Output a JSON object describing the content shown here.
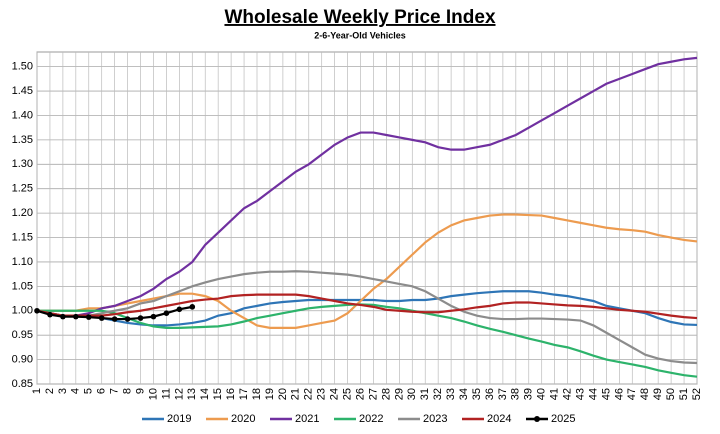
{
  "chart_data": {
    "type": "line",
    "title": "Wholesale Weekly Price Index",
    "subtitle": "2-6-Year-Old Vehicles",
    "x": [
      1,
      2,
      3,
      4,
      5,
      6,
      7,
      8,
      9,
      10,
      11,
      12,
      13,
      14,
      15,
      16,
      17,
      18,
      19,
      20,
      21,
      22,
      23,
      24,
      25,
      26,
      27,
      28,
      29,
      30,
      31,
      32,
      33,
      34,
      35,
      36,
      37,
      38,
      39,
      40,
      41,
      42,
      43,
      44,
      45,
      46,
      47,
      48,
      49,
      50,
      51,
      52
    ],
    "xlim": [
      1,
      52
    ],
    "xticks": [
      1,
      2,
      3,
      4,
      5,
      6,
      7,
      8,
      9,
      10,
      11,
      12,
      13,
      14,
      15,
      16,
      17,
      18,
      19,
      20,
      21,
      22,
      23,
      24,
      25,
      26,
      27,
      28,
      29,
      30,
      31,
      32,
      33,
      34,
      35,
      36,
      37,
      38,
      39,
      40,
      41,
      42,
      43,
      44,
      45,
      46,
      47,
      48,
      49,
      50,
      51,
      52
    ],
    "ylim": [
      0.85,
      1.53
    ],
    "yticks": [
      0.85,
      {
        "value": 0.9,
        "label": "0.90"
      },
      0.95,
      {
        "value": 1,
        "label": "1.00"
      },
      1.05,
      {
        "value": 1.1,
        "label": "1.10"
      },
      1.15,
      {
        "value": 1.2,
        "label": "1.20"
      },
      1.25,
      {
        "value": 1.3,
        "label": "1.30"
      },
      1.35,
      {
        "value": 1.4,
        "label": "1.40"
      },
      1.45,
      {
        "value": 1.5,
        "label": "1.50"
      }
    ],
    "grid": true,
    "legend": "bottom",
    "series": [
      {
        "name": "2019",
        "color": "#2e75b6",
        "values": [
          1.0,
          0.995,
          0.99,
          0.99,
          0.99,
          0.985,
          0.98,
          0.975,
          0.972,
          0.97,
          0.97,
          0.972,
          0.975,
          0.98,
          0.99,
          0.995,
          1.005,
          1.01,
          1.015,
          1.018,
          1.02,
          1.022,
          1.022,
          1.022,
          1.022,
          1.022,
          1.022,
          1.02,
          1.02,
          1.022,
          1.022,
          1.025,
          1.03,
          1.033,
          1.036,
          1.038,
          1.04,
          1.04,
          1.04,
          1.037,
          1.033,
          1.03,
          1.025,
          1.02,
          1.01,
          1.005,
          1.0,
          0.995,
          0.985,
          0.977,
          0.972,
          0.971
        ]
      },
      {
        "name": "2020",
        "color": "#ed9b4f",
        "values": [
          1.0,
          1.0,
          1.0,
          1.0,
          1.005,
          1.005,
          1.01,
          1.015,
          1.02,
          1.025,
          1.03,
          1.035,
          1.035,
          1.03,
          1.02,
          1.0,
          0.985,
          0.97,
          0.965,
          0.965,
          0.965,
          0.97,
          0.975,
          0.98,
          0.995,
          1.02,
          1.045,
          1.065,
          1.09,
          1.115,
          1.14,
          1.16,
          1.175,
          1.185,
          1.19,
          1.195,
          1.197,
          1.197,
          1.196,
          1.195,
          1.19,
          1.185,
          1.18,
          1.175,
          1.17,
          1.167,
          1.165,
          1.162,
          1.155,
          1.15,
          1.145,
          1.142
        ]
      },
      {
        "name": "2021",
        "color": "#7030a0",
        "values": [
          1.0,
          0.995,
          0.99,
          0.99,
          0.995,
          1.005,
          1.01,
          1.02,
          1.03,
          1.045,
          1.065,
          1.08,
          1.1,
          1.135,
          1.16,
          1.185,
          1.21,
          1.225,
          1.245,
          1.265,
          1.285,
          1.3,
          1.32,
          1.34,
          1.355,
          1.365,
          1.365,
          1.36,
          1.355,
          1.35,
          1.345,
          1.335,
          1.33,
          1.33,
          1.335,
          1.34,
          1.35,
          1.36,
          1.375,
          1.39,
          1.405,
          1.42,
          1.435,
          1.45,
          1.465,
          1.475,
          1.485,
          1.495,
          1.505,
          1.51,
          1.515,
          1.518
        ]
      },
      {
        "name": "2022",
        "color": "#2db36b",
        "values": [
          1.0,
          1.0,
          1.0,
          1.0,
          1.0,
          1.0,
          0.995,
          0.985,
          0.975,
          0.968,
          0.965,
          0.965,
          0.966,
          0.967,
          0.968,
          0.972,
          0.978,
          0.985,
          0.99,
          0.995,
          1.0,
          1.005,
          1.008,
          1.01,
          1.012,
          1.013,
          1.012,
          1.008,
          1.005,
          1.0,
          0.995,
          0.99,
          0.985,
          0.978,
          0.97,
          0.963,
          0.957,
          0.95,
          0.943,
          0.937,
          0.93,
          0.925,
          0.917,
          0.908,
          0.9,
          0.895,
          0.89,
          0.885,
          0.878,
          0.873,
          0.868,
          0.865
        ]
      },
      {
        "name": "2023",
        "color": "#8c8c8c",
        "values": [
          1.0,
          0.995,
          0.99,
          0.99,
          0.99,
          0.995,
          1.0,
          1.005,
          1.015,
          1.02,
          1.03,
          1.04,
          1.05,
          1.058,
          1.065,
          1.07,
          1.075,
          1.078,
          1.08,
          1.08,
          1.081,
          1.08,
          1.078,
          1.076,
          1.074,
          1.07,
          1.065,
          1.06,
          1.055,
          1.05,
          1.04,
          1.025,
          1.01,
          0.998,
          0.99,
          0.985,
          0.983,
          0.983,
          0.984,
          0.984,
          0.983,
          0.982,
          0.98,
          0.97,
          0.955,
          0.94,
          0.925,
          0.91,
          0.902,
          0.897,
          0.894,
          0.893
        ]
      },
      {
        "name": "2024",
        "color": "#b22222",
        "values": [
          1.0,
          0.995,
          0.99,
          0.99,
          0.99,
          0.99,
          0.993,
          0.997,
          1.0,
          1.005,
          1.01,
          1.015,
          1.02,
          1.023,
          1.025,
          1.03,
          1.032,
          1.033,
          1.033,
          1.033,
          1.033,
          1.03,
          1.025,
          1.02,
          1.015,
          1.012,
          1.008,
          1.002,
          1.0,
          0.998,
          0.997,
          0.997,
          1.0,
          1.003,
          1.007,
          1.01,
          1.015,
          1.017,
          1.017,
          1.015,
          1.013,
          1.011,
          1.01,
          1.008,
          1.005,
          1.002,
          1.0,
          0.998,
          0.994,
          0.99,
          0.987,
          0.985
        ]
      },
      {
        "name": "2025",
        "color": "#000000",
        "marker": "circle",
        "values": [
          1.0,
          0.992,
          0.988,
          0.988,
          0.987,
          0.985,
          0.983,
          0.983,
          0.985,
          0.988,
          0.995,
          1.003,
          1.008,
          null,
          null,
          null,
          null,
          null,
          null,
          null,
          null,
          null,
          null,
          null,
          null,
          null,
          null,
          null,
          null,
          null,
          null,
          null,
          null,
          null,
          null,
          null,
          null,
          null,
          null,
          null,
          null,
          null,
          null,
          null,
          null,
          null,
          null,
          null,
          null,
          null,
          null,
          null
        ]
      }
    ]
  }
}
